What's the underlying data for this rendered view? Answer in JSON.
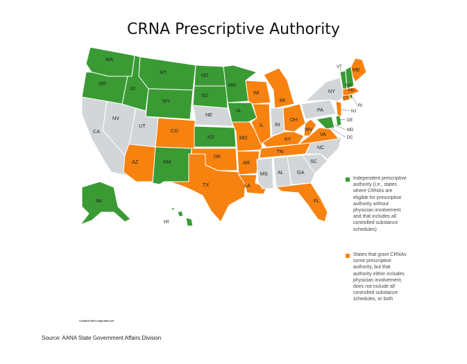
{
  "title": "CRNA Prescriptive Authority",
  "colors": {
    "independent": "#3a9b34",
    "some": "#f7820f",
    "none": "#d3d6d8"
  },
  "states": {
    "WA": "WA",
    "OR": "OR",
    "CA": "CA",
    "NV": "NV",
    "ID": "ID",
    "MT": "MT",
    "WY": "WY",
    "UT": "UT",
    "AZ": "AZ",
    "CO": "CO",
    "NM": "NM",
    "ND": "ND",
    "SD": "SD",
    "NE": "NE",
    "KS": "KS",
    "OK": "OK",
    "TX": "TX",
    "MN": "MN",
    "IA": "IA",
    "MO": "MO",
    "AR": "AR",
    "LA": "LA",
    "WI": "WI",
    "IL": "IL",
    "MI": "MI",
    "IN": "IN",
    "OH": "OH",
    "KY": "KY",
    "TN": "TN",
    "MS": "MS",
    "AL": "AL",
    "GA": "GA",
    "FL": "FL",
    "SC": "SC",
    "NC": "NC",
    "VA": "VA",
    "WV": "WV",
    "PA": "PA",
    "NY": "NY",
    "ME": "ME",
    "NH": "NH",
    "VT": "VT",
    "MA": "MA",
    "CT": "CT",
    "RI": "RI",
    "NJ": "NJ",
    "DE": "DE",
    "MD": "MD",
    "DC": "DC",
    "AK": "AK",
    "HI": "HI"
  },
  "legend": {
    "independent": "Independent prescriptive authority (i.e., states where CRNAs are eligible for prescriptive authority without physician involvement and that includes all controlled substance schedules)",
    "some": "States that grant CRNAs some prescriptive authority, but that authority either includes physician involvement, does not include all controlled substance schedules, or both"
  },
  "credit": "Created with mapchart.net",
  "source": "Source: AANA State Government Affairs Division"
}
